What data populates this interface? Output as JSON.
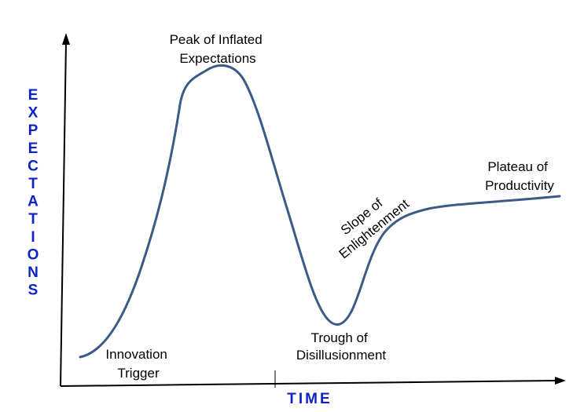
{
  "colors": {
    "curve": "#3c5a86",
    "axis_title": "#0f22c8",
    "axis": "#000000"
  },
  "axes": {
    "y_title": "EXPECTATIONS",
    "x_title": "TIME"
  },
  "labels": {
    "peak_line1": "Peak of Inflated",
    "peak_line2": "Expectations",
    "innovation_line1": "Innovation",
    "innovation_line2": "Trigger",
    "trough_line1": "Trough of",
    "trough_line2": "Disillusionment",
    "slope_line1": "Slope of",
    "slope_line2": "Enlightenment",
    "plateau_line1": "Plateau of",
    "plateau_line2": "Productivity"
  }
}
